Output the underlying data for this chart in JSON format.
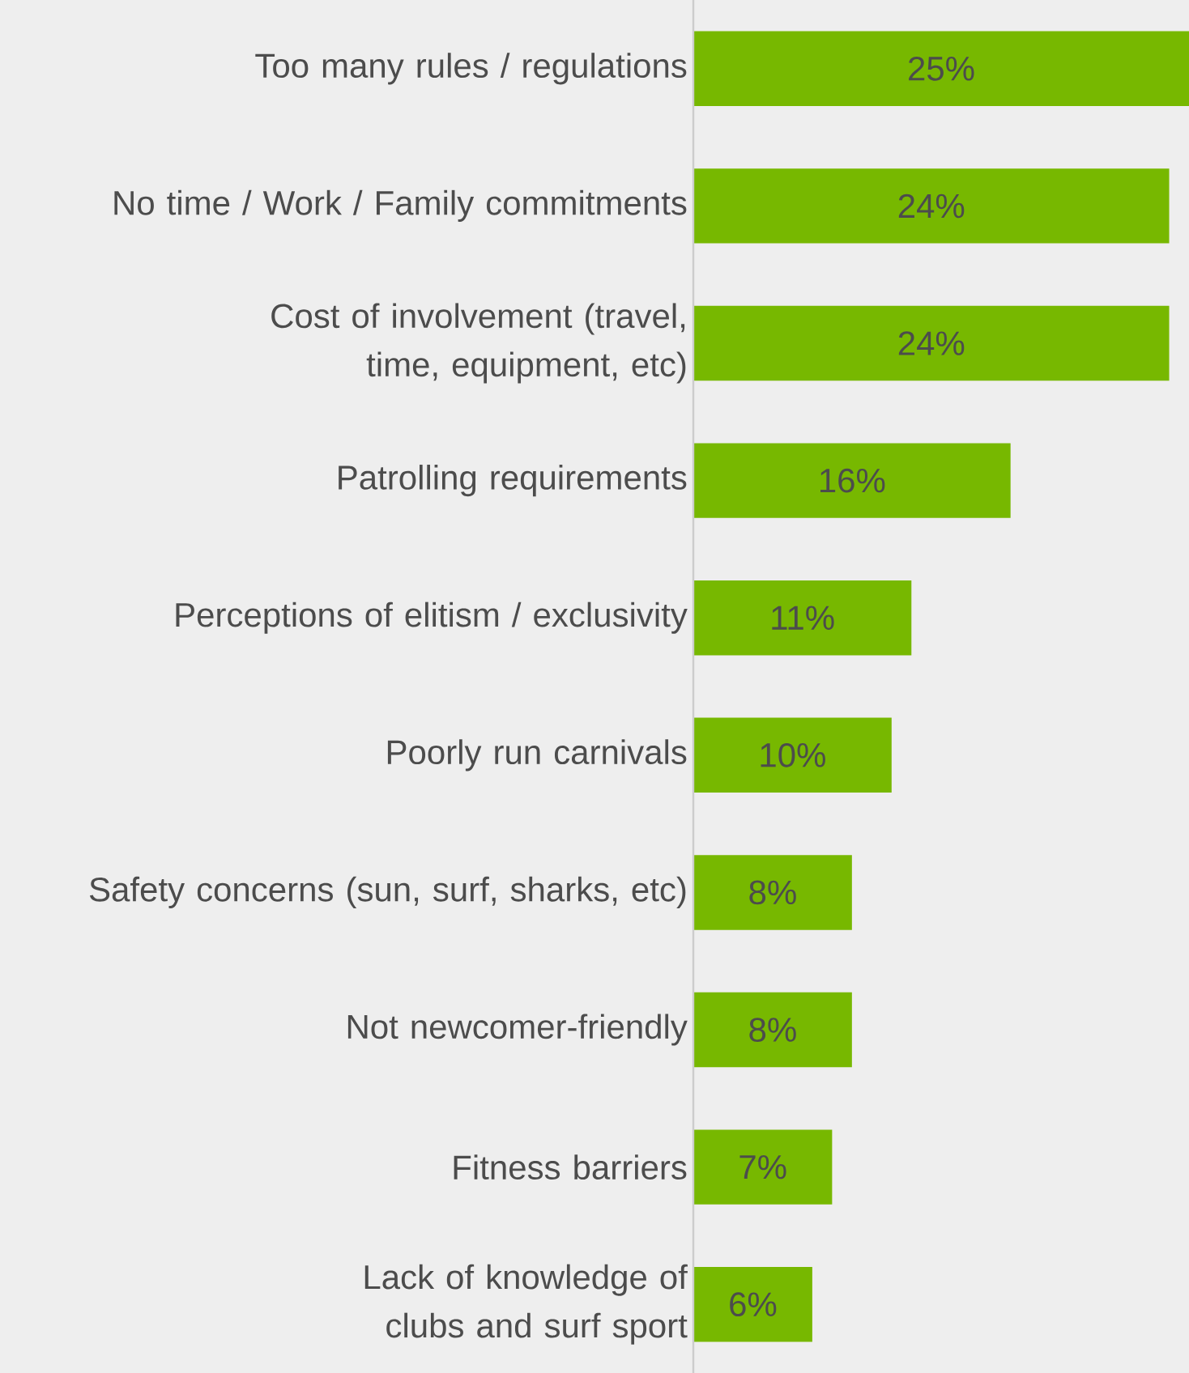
{
  "chart_data": {
    "type": "bar",
    "orientation": "horizontal",
    "categories": [
      "Too many rules / regulations",
      "No time / Work / Family commitments",
      "Cost of involvement (travel, time, equipment, etc)",
      "Patrolling requirements",
      "Perceptions of elitism / exclusivity",
      "Poorly run carnivals",
      "Safety concerns (sun, surf, sharks, etc)",
      "Not newcomer-friendly",
      "Fitness barriers",
      "Lack of knowledge of clubs and surf sport"
    ],
    "values": [
      25,
      24,
      24,
      16,
      11,
      10,
      8,
      8,
      7,
      6
    ],
    "value_labels": [
      "25%",
      "24%",
      "24%",
      "16%",
      "11%",
      "10%",
      "8%",
      "8%",
      "7%",
      "6%"
    ],
    "color": "#77b800",
    "xlim": [
      0,
      25
    ]
  }
}
